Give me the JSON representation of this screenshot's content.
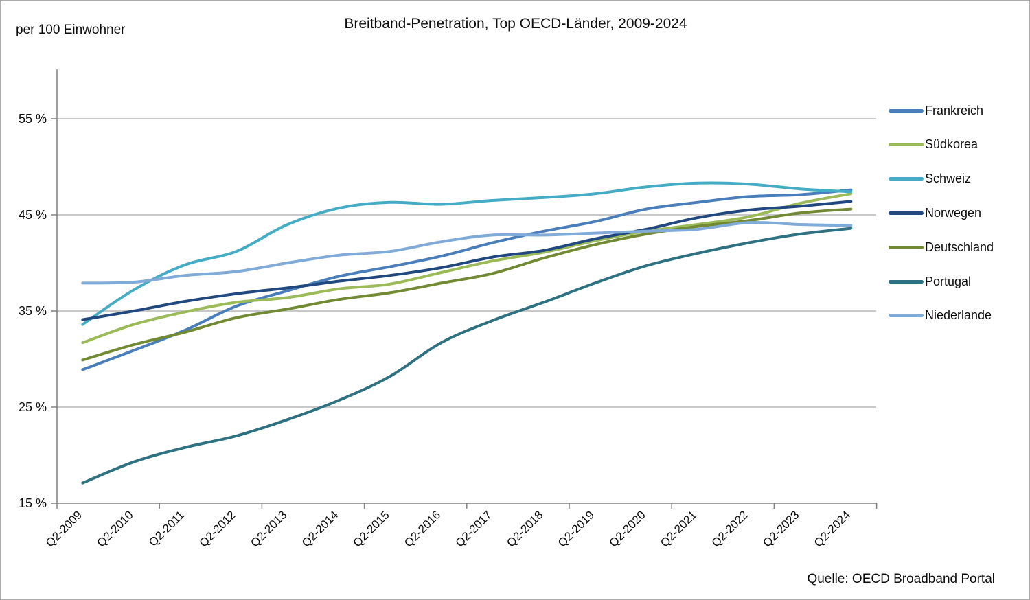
{
  "header": {
    "title": "Breitband-Penetration, Top OECD-Länder, 2009-2024",
    "y_unit_label": "per 100 Einwohner"
  },
  "footer": {
    "source": "Quelle: OECD Broadband Portal"
  },
  "chart_data": {
    "type": "line",
    "title": "Breitband-Penetration, Top OECD-Länder, 2009-2024",
    "ylabel": "per 100 Einwohner",
    "xlabel": "",
    "grid": true,
    "legend_position": "right",
    "ylim": [
      15,
      60
    ],
    "yticks": [
      {
        "value": 15,
        "label": "15 %"
      },
      {
        "value": 25,
        "label": "25 %"
      },
      {
        "value": 35,
        "label": "35 %"
      },
      {
        "value": 45,
        "label": "45 %"
      },
      {
        "value": 55,
        "label": "55 %"
      }
    ],
    "categories": [
      "Q2-2009",
      "Q2-2010",
      "Q2-2011",
      "Q2-2012",
      "Q2-2013",
      "Q2-2014",
      "Q2-2015",
      "Q2-2016",
      "Q2-2017",
      "Q2-2018",
      "Q2-2019",
      "Q2-2020",
      "Q2-2021",
      "Q2-2022",
      "Q2-2023",
      "Q2-2024"
    ],
    "series": [
      {
        "name": "Frankreich",
        "color": "#4a7ebb",
        "values": [
          28.9,
          30.9,
          33.0,
          35.5,
          37.1,
          38.6,
          39.6,
          40.7,
          42.1,
          43.3,
          44.3,
          45.6,
          46.3,
          46.9,
          47.1,
          47.6
        ]
      },
      {
        "name": "Südkorea",
        "color": "#9bbb59",
        "values": [
          31.7,
          33.6,
          34.9,
          35.9,
          36.4,
          37.3,
          37.8,
          39.0,
          40.2,
          41.1,
          42.3,
          43.3,
          44.0,
          44.8,
          46.2,
          47.2
        ]
      },
      {
        "name": "Schweiz",
        "color": "#45acc5",
        "values": [
          33.6,
          37.2,
          39.8,
          41.2,
          44.0,
          45.7,
          46.3,
          46.1,
          46.5,
          46.8,
          47.2,
          47.9,
          48.3,
          48.2,
          47.7,
          47.4
        ]
      },
      {
        "name": "Norwegen",
        "color": "#21497f",
        "values": [
          34.1,
          35.0,
          36.0,
          36.8,
          37.4,
          38.1,
          38.7,
          39.5,
          40.6,
          41.3,
          42.5,
          43.5,
          44.7,
          45.5,
          45.9,
          46.4
        ]
      },
      {
        "name": "Deutschland",
        "color": "#718a33",
        "values": [
          29.9,
          31.5,
          32.8,
          34.3,
          35.2,
          36.2,
          36.9,
          37.9,
          38.9,
          40.5,
          41.9,
          43.0,
          43.8,
          44.4,
          45.2,
          45.6
        ]
      },
      {
        "name": "Portugal",
        "color": "#2e7181",
        "values": [
          17.1,
          19.3,
          20.8,
          22.0,
          23.7,
          25.7,
          28.2,
          31.7,
          34.0,
          35.9,
          37.9,
          39.7,
          41.0,
          42.1,
          43.0,
          43.6
        ]
      },
      {
        "name": "Niederlande",
        "color": "#80aad8",
        "values": [
          37.9,
          38.0,
          38.7,
          39.1,
          40.0,
          40.8,
          41.2,
          42.2,
          42.9,
          42.9,
          43.1,
          43.3,
          43.5,
          44.2,
          44.0,
          43.9
        ]
      }
    ]
  }
}
